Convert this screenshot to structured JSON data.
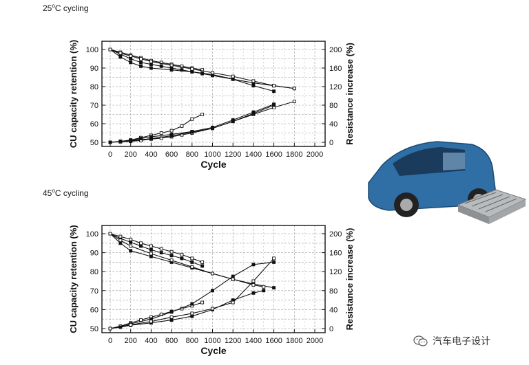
{
  "panels": [
    {
      "title_prefix": "25",
      "title_deg": "o",
      "title_suffix": "C cycling"
    },
    {
      "title_prefix": "45",
      "title_deg": "o",
      "title_suffix": "C cycling"
    }
  ],
  "watermark": {
    "text": "汽车电子设计"
  },
  "colors": {
    "ink": "#111111",
    "grid": "#9a9a9a",
    "car_body": "#2f6fa6",
    "battery": "#b9bcbf"
  },
  "chart_data": [
    {
      "type": "line",
      "title": "25°C cycling",
      "xlabel": "Cycle",
      "ylabel": "CU capacity retention (%)",
      "y2label": "Resistance increase (%)",
      "xlim": [
        0,
        2000
      ],
      "ylim": [
        50,
        100
      ],
      "y2lim": [
        0,
        200
      ],
      "x_ticks": [
        0,
        200,
        400,
        600,
        800,
        1000,
        1200,
        1400,
        1600,
        1800,
        2000
      ],
      "y_ticks": [
        50,
        60,
        70,
        80,
        90,
        100
      ],
      "y2_ticks": [
        0,
        40,
        80,
        120,
        160,
        200
      ],
      "grid": true,
      "series": [
        {
          "axis": "left",
          "marker": "filled",
          "x": [
            0,
            100,
            200,
            300,
            400,
            500,
            600,
            700,
            800,
            900,
            1000,
            1200,
            1400,
            1600,
            1800
          ],
          "y": [
            100,
            97.5,
            95,
            93,
            92,
            91,
            90,
            89,
            88,
            87,
            86,
            84,
            82,
            80.5,
            79
          ]
        },
        {
          "axis": "left",
          "marker": "filled",
          "x": [
            0,
            100,
            200,
            300,
            400,
            600,
            800,
            1000,
            1200,
            1400,
            1600
          ],
          "y": [
            100,
            96,
            93,
            91,
            90,
            89,
            88,
            86.5,
            84,
            80.5,
            77.5
          ]
        },
        {
          "axis": "left",
          "marker": "open",
          "x": [
            0,
            100,
            200,
            300,
            400,
            500,
            600,
            700,
            800,
            900
          ],
          "y": [
            100,
            98.5,
            97,
            95.5,
            94,
            93,
            92,
            91,
            90,
            89
          ]
        },
        {
          "axis": "left",
          "marker": "open",
          "x": [
            0,
            100,
            200,
            300,
            400,
            600,
            800,
            1000,
            1200,
            1400,
            1600,
            1800
          ],
          "y": [
            100,
            98,
            96.5,
            95,
            93.5,
            91.5,
            89.5,
            87.5,
            85.5,
            83,
            80.5,
            79
          ]
        },
        {
          "axis": "right",
          "marker": "open",
          "x": [
            0,
            100,
            200,
            300,
            400,
            500,
            600,
            700,
            800,
            900
          ],
          "y": [
            0,
            2,
            5,
            10,
            15,
            20,
            25,
            35,
            50,
            60
          ]
        },
        {
          "axis": "right",
          "marker": "open",
          "x": [
            0,
            100,
            200,
            300,
            400,
            500,
            600,
            700,
            800,
            1000,
            1200,
            1400,
            1600,
            1800
          ],
          "y": [
            0,
            1,
            2,
            4,
            7,
            9,
            12,
            16,
            20,
            30,
            45,
            60,
            75,
            88
          ]
        },
        {
          "axis": "right",
          "marker": "filled",
          "x": [
            0,
            100,
            200,
            300,
            400,
            600,
            800,
            1000,
            1200,
            1400,
            1600
          ],
          "y": [
            0,
            2,
            4,
            8,
            12,
            17,
            23,
            32,
            48,
            65,
            82
          ]
        },
        {
          "axis": "right",
          "marker": "filled",
          "x": [
            0,
            200,
            400,
            600,
            800,
            1000,
            1200,
            1400,
            1600
          ],
          "y": [
            0,
            3,
            8,
            14,
            22,
            30,
            45,
            62,
            80
          ]
        }
      ]
    },
    {
      "type": "line",
      "title": "45°C cycling",
      "xlabel": "Cycle",
      "ylabel": "CU capacity retention (%)",
      "y2label": "Resistance increase (%)",
      "xlim": [
        0,
        2000
      ],
      "ylim": [
        50,
        100
      ],
      "y2lim": [
        0,
        200
      ],
      "x_ticks": [
        0,
        200,
        400,
        600,
        800,
        1000,
        1200,
        1400,
        1600,
        1800,
        2000
      ],
      "y_ticks": [
        50,
        60,
        70,
        80,
        90,
        100
      ],
      "y2_ticks": [
        0,
        40,
        80,
        120,
        160,
        200
      ],
      "grid": true,
      "series": [
        {
          "axis": "left",
          "marker": "filled",
          "x": [
            0,
            100,
            200,
            300,
            400,
            500,
            600,
            700,
            800,
            900
          ],
          "y": [
            100,
            97.5,
            95.5,
            93.5,
            91.5,
            90,
            88.5,
            87,
            85,
            83
          ]
        },
        {
          "axis": "left",
          "marker": "filled",
          "x": [
            0,
            100,
            200,
            400,
            600,
            800,
            1000,
            1200,
            1400,
            1600
          ],
          "y": [
            100,
            95,
            91,
            88,
            85,
            82,
            79,
            76,
            73.5,
            71.5
          ]
        },
        {
          "axis": "left",
          "marker": "open",
          "x": [
            0,
            100,
            200,
            300,
            400,
            500,
            600,
            700,
            800,
            900
          ],
          "y": [
            100,
            98.5,
            97,
            95,
            93.5,
            92,
            90.5,
            89,
            87,
            85
          ]
        },
        {
          "axis": "left",
          "marker": "open",
          "x": [
            0,
            100,
            200,
            400,
            600,
            800,
            1000,
            1200,
            1400,
            1500
          ],
          "y": [
            100,
            96.5,
            93.5,
            89.5,
            86,
            82.5,
            79,
            76,
            73,
            72
          ]
        },
        {
          "axis": "right",
          "marker": "open",
          "x": [
            0,
            100,
            200,
            300,
            400,
            500,
            600,
            700,
            800,
            900
          ],
          "y": [
            0,
            5,
            12,
            18,
            24,
            30,
            36,
            42,
            48,
            55
          ]
        },
        {
          "axis": "right",
          "marker": "filled",
          "x": [
            0,
            100,
            200,
            400,
            600,
            800,
            1000,
            1200,
            1400,
            1500
          ],
          "y": [
            0,
            3,
            7,
            12,
            18,
            26,
            40,
            60,
            75,
            80
          ]
        },
        {
          "axis": "right",
          "marker": "filled",
          "x": [
            0,
            200,
            400,
            600,
            800,
            1000,
            1200,
            1400,
            1600
          ],
          "y": [
            0,
            10,
            20,
            35,
            52,
            80,
            110,
            135,
            140
          ]
        },
        {
          "axis": "right",
          "marker": "open",
          "x": [
            0,
            200,
            400,
            600,
            800,
            1000,
            1200,
            1400,
            1600
          ],
          "y": [
            0,
            8,
            15,
            24,
            32,
            42,
            55,
            100,
            148
          ]
        }
      ]
    }
  ]
}
